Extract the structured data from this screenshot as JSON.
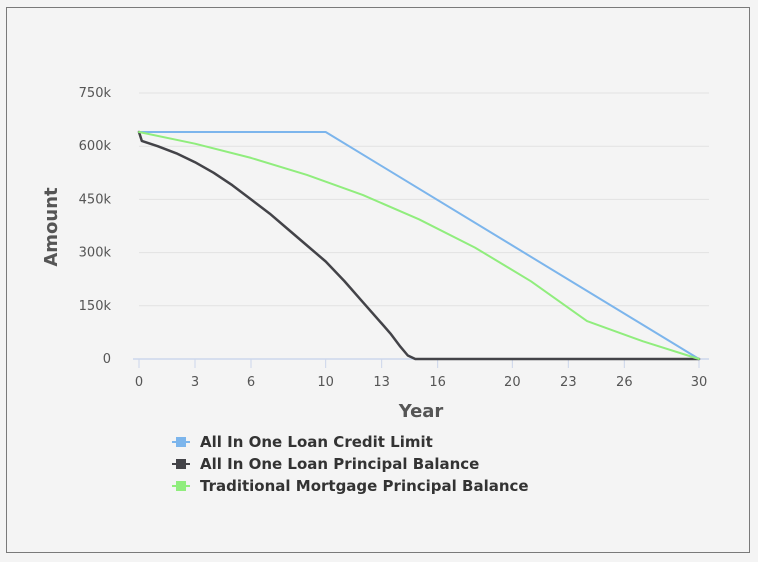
{
  "chart_data": {
    "type": "line",
    "title": "",
    "xlabel": "Year",
    "ylabel": "Amount",
    "xlim": [
      0,
      30
    ],
    "ylim": [
      0,
      750000
    ],
    "x_ticks": [
      "0",
      "3",
      "6",
      "10",
      "13",
      "16",
      "20",
      "23",
      "26",
      "30"
    ],
    "y_ticks": [
      "0",
      "150k",
      "300k",
      "450k",
      "600k",
      "750k"
    ],
    "grid": true,
    "legend_position": "bottom",
    "series": [
      {
        "name": "All In One Loan Credit Limit",
        "color": "#7cb5ec",
        "x": [
          0,
          10,
          30
        ],
        "y": [
          640000,
          640000,
          0
        ]
      },
      {
        "name": "All In One Loan Principal Balance",
        "color": "#434348",
        "x": [
          0,
          0.15,
          1,
          2,
          3,
          4,
          5,
          6,
          7,
          8,
          9,
          10,
          11,
          12,
          13,
          13.5,
          14,
          14.4,
          14.8,
          15,
          20,
          25,
          30
        ],
        "y": [
          640000,
          615000,
          600000,
          580000,
          555000,
          525000,
          490000,
          450000,
          410000,
          365000,
          320000,
          275000,
          220000,
          160000,
          100000,
          70000,
          35000,
          10000,
          0,
          0,
          0,
          0,
          0
        ]
      },
      {
        "name": "Traditional Mortgage Principal Balance",
        "color": "#90ed7d",
        "x": [
          0,
          3,
          6,
          9,
          12,
          15,
          18,
          21,
          24,
          27,
          30
        ],
        "y": [
          640000,
          607000,
          567000,
          519000,
          462000,
          394000,
          314000,
          219000,
          107000,
          50000,
          0
        ]
      }
    ]
  }
}
